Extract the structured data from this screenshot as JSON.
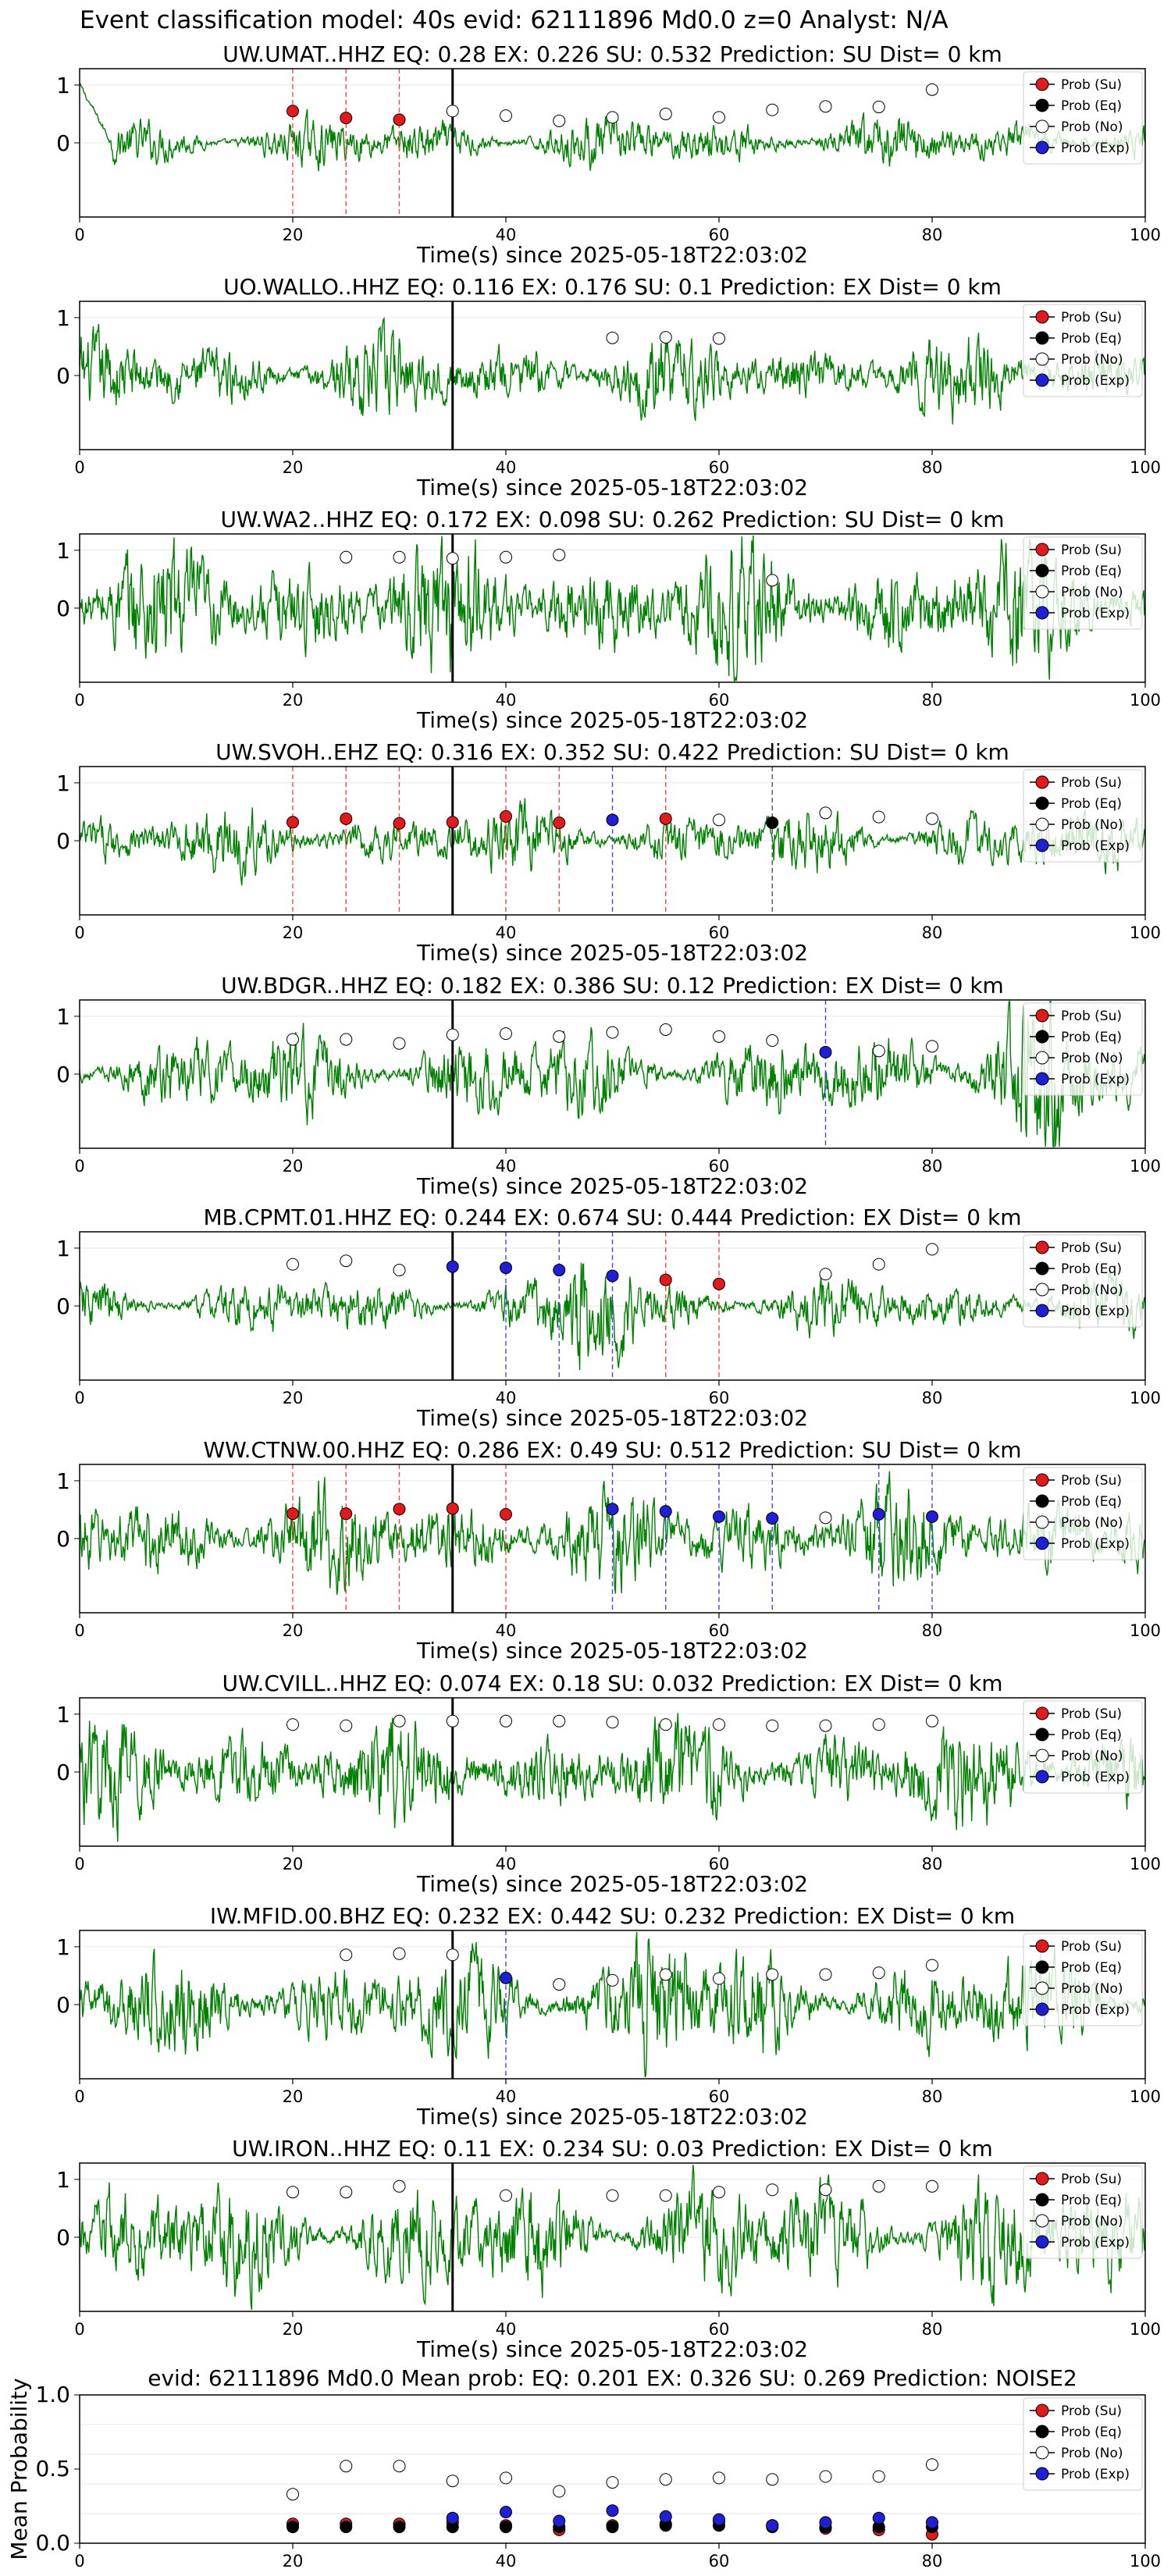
{
  "suptitle": "Event classification model: 40s evid: 62111896 Md0.0 z=0 Analyst: N/A",
  "colors": {
    "su": "#e31a1c",
    "eq": "#000000",
    "no": "#ffffff",
    "exp": "#1f1fd6",
    "trace": "#008000",
    "pick": "#000000"
  },
  "legend_labels": [
    "Prob (Su)",
    "Prob (Eq)",
    "Prob (No)",
    "Prob (Exp)"
  ],
  "chart_data": [
    {
      "type": "scatter",
      "title": "UW.UMAT..HHZ   EQ: 0.28  EX: 0.226  SU: 0.532   Prediction: SU    Dist= 0 km",
      "xlabel": "Time(s) since 2025-05-18T22:03:02",
      "xlim": [
        0,
        100
      ],
      "x_ticks": [
        0,
        20,
        40,
        60,
        80,
        100
      ],
      "y_ticks": [
        "1",
        "0"
      ],
      "grid": true,
      "legend": "top-right",
      "pick_time": 35,
      "waveform": "Seismogram trace (green), normalized amplitude",
      "series": [
        {
          "name": "Prob (Su)",
          "points": [
            [
              20,
              0.55
            ],
            [
              25,
              0.43
            ],
            [
              30,
              0.4
            ]
          ]
        },
        {
          "name": "Prob (No)",
          "points": [
            [
              35,
              0.55
            ],
            [
              40,
              0.47
            ],
            [
              45,
              0.38
            ],
            [
              50,
              0.44
            ],
            [
              55,
              0.5
            ],
            [
              60,
              0.44
            ],
            [
              65,
              0.57
            ],
            [
              70,
              0.63
            ],
            [
              75,
              0.62
            ],
            [
              80,
              0.92
            ]
          ]
        }
      ]
    },
    {
      "type": "scatter",
      "title": "UO.WALLO..HHZ   EQ: 0.116  EX: 0.176  SU: 0.1   Prediction: EX    Dist= 0 km",
      "xlabel": "Time(s) since 2025-05-18T22:03:02",
      "xlim": [
        0,
        100
      ],
      "x_ticks": [
        0,
        20,
        40,
        60,
        80,
        100
      ],
      "y_ticks": [
        "1",
        "0"
      ],
      "grid": true,
      "legend": "top-right",
      "pick_time": 35,
      "waveform": "Seismogram trace (green), normalized amplitude",
      "series": [
        {
          "name": "Prob (No)",
          "points": [
            [
              50,
              0.65
            ],
            [
              55,
              0.66
            ],
            [
              60,
              0.64
            ]
          ]
        }
      ]
    },
    {
      "type": "scatter",
      "title": "UW.WA2..HHZ   EQ: 0.172  EX: 0.098  SU: 0.262   Prediction: SU    Dist= 0 km",
      "xlabel": "Time(s) since 2025-05-18T22:03:02",
      "xlim": [
        0,
        100
      ],
      "x_ticks": [
        0,
        20,
        40,
        60,
        80,
        100
      ],
      "y_ticks": [
        "1",
        "0"
      ],
      "grid": true,
      "legend": "top-right",
      "pick_time": 35,
      "waveform": "Seismogram trace (green), normalized amplitude",
      "series": [
        {
          "name": "Prob (No)",
          "points": [
            [
              25,
              0.88
            ],
            [
              30,
              0.88
            ],
            [
              35,
              0.86
            ],
            [
              40,
              0.88
            ],
            [
              45,
              0.92
            ],
            [
              65,
              0.48
            ]
          ]
        }
      ]
    },
    {
      "type": "scatter",
      "title": "UW.SVOH..EHZ   EQ: 0.316  EX: 0.352  SU: 0.422    Prediction: SU    Dist= 0 km",
      "xlabel": "Time(s) since 2025-05-18T22:03:02",
      "xlim": [
        0,
        100
      ],
      "x_ticks": [
        0,
        20,
        40,
        60,
        80,
        100
      ],
      "y_ticks": [
        "1",
        "0"
      ],
      "grid": true,
      "legend": "top-right",
      "pick_time": 35,
      "waveform": "Seismogram trace (green), normalized amplitude",
      "series": [
        {
          "name": "Prob (Su)",
          "points": [
            [
              20,
              0.32
            ],
            [
              25,
              0.38
            ],
            [
              30,
              0.3
            ],
            [
              35,
              0.32
            ],
            [
              40,
              0.42
            ],
            [
              45,
              0.31
            ],
            [
              55,
              0.38
            ]
          ]
        },
        {
          "name": "Prob (Eq)",
          "points": [
            [
              65,
              0.31
            ]
          ]
        },
        {
          "name": "Prob (No)",
          "points": [
            [
              60,
              0.36
            ],
            [
              70,
              0.48
            ],
            [
              75,
              0.41
            ],
            [
              80,
              0.38
            ]
          ]
        },
        {
          "name": "Prob (Exp)",
          "points": [
            [
              50,
              0.36
            ]
          ]
        }
      ]
    },
    {
      "type": "scatter",
      "title": "UW.BDGR..HHZ   EQ: 0.182  EX: 0.386  SU: 0.12    Prediction: EX    Dist= 0 km",
      "xlabel": "Time(s) since 2025-05-18T22:03:02",
      "xlim": [
        0,
        100
      ],
      "x_ticks": [
        0,
        20,
        40,
        60,
        80,
        100
      ],
      "y_ticks": [
        "1",
        "0"
      ],
      "grid": true,
      "legend": "top-right",
      "pick_time": 35,
      "waveform": "Seismogram trace (green), normalized amplitude",
      "series": [
        {
          "name": "Prob (No)",
          "points": [
            [
              20,
              0.6
            ],
            [
              25,
              0.6
            ],
            [
              30,
              0.53
            ],
            [
              35,
              0.68
            ],
            [
              40,
              0.7
            ],
            [
              45,
              0.65
            ],
            [
              50,
              0.72
            ],
            [
              55,
              0.77
            ],
            [
              60,
              0.65
            ],
            [
              65,
              0.58
            ],
            [
              75,
              0.4
            ],
            [
              80,
              0.48
            ]
          ]
        },
        {
          "name": "Prob (Exp)",
          "points": [
            [
              70,
              0.38
            ]
          ]
        }
      ]
    },
    {
      "type": "scatter",
      "title": "MB.CPMT.01.HHZ   EQ: 0.244  EX: 0.674  SU: 0.444   Prediction: EX    Dist= 0 km",
      "xlabel": "Time(s) since 2025-05-18T22:03:02",
      "xlim": [
        0,
        100
      ],
      "x_ticks": [
        0,
        20,
        40,
        60,
        80,
        100
      ],
      "y_ticks": [
        "1",
        "0"
      ],
      "grid": true,
      "legend": "top-right",
      "pick_time": 35,
      "waveform": "Seismogram trace (green), normalized amplitude",
      "series": [
        {
          "name": "Prob (Su)",
          "points": [
            [
              55,
              0.45
            ],
            [
              60,
              0.38
            ]
          ]
        },
        {
          "name": "Prob (No)",
          "points": [
            [
              20,
              0.72
            ],
            [
              25,
              0.78
            ],
            [
              30,
              0.62
            ],
            [
              70,
              0.55
            ],
            [
              75,
              0.72
            ],
            [
              80,
              0.98
            ]
          ]
        },
        {
          "name": "Prob (Exp)",
          "points": [
            [
              35,
              0.68
            ],
            [
              40,
              0.66
            ],
            [
              45,
              0.62
            ],
            [
              50,
              0.52
            ]
          ]
        }
      ]
    },
    {
      "type": "scatter",
      "title": "WW.CTNW.00.HHZ   EQ: 0.286  EX: 0.49  SU: 0.512   Prediction: SU    Dist= 0 km",
      "xlabel": "Time(s) since 2025-05-18T22:03:02",
      "xlim": [
        0,
        100
      ],
      "x_ticks": [
        0,
        20,
        40,
        60,
        80,
        100
      ],
      "y_ticks": [
        "1",
        "0"
      ],
      "grid": true,
      "legend": "top-right",
      "pick_time": 35,
      "waveform": "Seismogram trace (green), normalized amplitude",
      "series": [
        {
          "name": "Prob (Su)",
          "points": [
            [
              20,
              0.43
            ],
            [
              25,
              0.43
            ],
            [
              30,
              0.51
            ],
            [
              35,
              0.52
            ],
            [
              40,
              0.42
            ]
          ]
        },
        {
          "name": "Prob (No)",
          "points": [
            [
              70,
              0.36
            ]
          ]
        },
        {
          "name": "Prob (Exp)",
          "points": [
            [
              50,
              0.51
            ],
            [
              55,
              0.47
            ],
            [
              60,
              0.38
            ],
            [
              65,
              0.35
            ],
            [
              75,
              0.42
            ],
            [
              80,
              0.38
            ]
          ]
        }
      ]
    },
    {
      "type": "scatter",
      "title": "UW.CVILL..HHZ   EQ: 0.074  EX: 0.18  SU: 0.032   Prediction: EX    Dist= 0 km",
      "xlabel": "Time(s) since 2025-05-18T22:03:02",
      "xlim": [
        0,
        100
      ],
      "x_ticks": [
        0,
        20,
        40,
        60,
        80,
        100
      ],
      "y_ticks": [
        "1",
        "0"
      ],
      "grid": true,
      "legend": "top-right",
      "pick_time": 35,
      "waveform": "Seismogram trace (green), normalized amplitude",
      "series": [
        {
          "name": "Prob (No)",
          "points": [
            [
              20,
              0.82
            ],
            [
              25,
              0.8
            ],
            [
              30,
              0.88
            ],
            [
              35,
              0.88
            ],
            [
              40,
              0.88
            ],
            [
              45,
              0.88
            ],
            [
              50,
              0.86
            ],
            [
              55,
              0.82
            ],
            [
              60,
              0.82
            ],
            [
              65,
              0.8
            ],
            [
              70,
              0.8
            ],
            [
              75,
              0.82
            ],
            [
              80,
              0.88
            ]
          ]
        }
      ]
    },
    {
      "type": "scatter",
      "title": "IW.MFID.00.BHZ   EQ: 0.232  EX: 0.442  SU: 0.232   Prediction: EX    Dist= 0 km",
      "xlabel": "Time(s) since 2025-05-18T22:03:02",
      "xlim": [
        0,
        100
      ],
      "x_ticks": [
        0,
        20,
        40,
        60,
        80,
        100
      ],
      "y_ticks": [
        "1",
        "0"
      ],
      "grid": true,
      "legend": "top-right",
      "pick_time": 35,
      "waveform": "Seismogram trace (green), normalized amplitude",
      "series": [
        {
          "name": "Prob (No)",
          "points": [
            [
              25,
              0.86
            ],
            [
              30,
              0.88
            ],
            [
              35,
              0.86
            ],
            [
              45,
              0.35
            ],
            [
              50,
              0.42
            ],
            [
              55,
              0.52
            ],
            [
              60,
              0.45
            ],
            [
              65,
              0.52
            ],
            [
              70,
              0.52
            ],
            [
              75,
              0.55
            ],
            [
              80,
              0.68
            ]
          ]
        },
        {
          "name": "Prob (Exp)",
          "points": [
            [
              40,
              0.46
            ]
          ]
        }
      ]
    },
    {
      "type": "scatter",
      "title": "UW.IRON..HHZ   EQ: 0.11  EX: 0.234  SU: 0.03   Prediction: EX    Dist= 0 km",
      "xlabel": "Time(s) since 2025-05-18T22:03:02",
      "xlim": [
        0,
        100
      ],
      "x_ticks": [
        0,
        20,
        40,
        60,
        80,
        100
      ],
      "y_ticks": [
        "1",
        "0"
      ],
      "grid": true,
      "legend": "top-right",
      "pick_time": 35,
      "waveform": "Seismogram trace (green), normalized amplitude",
      "series": [
        {
          "name": "Prob (No)",
          "points": [
            [
              20,
              0.78
            ],
            [
              25,
              0.78
            ],
            [
              30,
              0.88
            ],
            [
              40,
              0.72
            ],
            [
              50,
              0.72
            ],
            [
              55,
              0.72
            ],
            [
              60,
              0.78
            ],
            [
              65,
              0.82
            ],
            [
              70,
              0.82
            ],
            [
              75,
              0.88
            ],
            [
              80,
              0.88
            ]
          ]
        }
      ]
    },
    {
      "type": "scatter",
      "title": "evid: 62111896  Md0.0   Mean prob:   EQ: 0.201  EX: 0.326  SU: 0.269   Prediction: NOISE2",
      "ylabel": "Mean Probability",
      "xlim": [
        0,
        100
      ],
      "ylim": [
        0,
        1
      ],
      "x_ticks": [
        0,
        20,
        40,
        60,
        80,
        100
      ],
      "y_ticks": [
        "1.0",
        "0.5",
        "0.0"
      ],
      "grid": true,
      "legend": "top-right",
      "series": [
        {
          "name": "Prob (Su)",
          "points": [
            [
              20,
              0.13
            ],
            [
              25,
              0.13
            ],
            [
              30,
              0.13
            ],
            [
              35,
              0.14
            ],
            [
              40,
              0.12
            ],
            [
              45,
              0.09
            ],
            [
              50,
              0.12
            ],
            [
              55,
              0.13
            ],
            [
              60,
              0.15
            ],
            [
              65,
              0.12
            ],
            [
              70,
              0.1
            ],
            [
              75,
              0.09
            ],
            [
              80,
              0.06
            ]
          ]
        },
        {
          "name": "Prob (Eq)",
          "points": [
            [
              20,
              0.11
            ],
            [
              25,
              0.11
            ],
            [
              30,
              0.11
            ],
            [
              35,
              0.11
            ],
            [
              40,
              0.11
            ],
            [
              45,
              0.11
            ],
            [
              50,
              0.11
            ],
            [
              55,
              0.12
            ],
            [
              60,
              0.12
            ],
            [
              65,
              0.11
            ],
            [
              70,
              0.11
            ],
            [
              75,
              0.11
            ],
            [
              80,
              0.11
            ]
          ]
        },
        {
          "name": "Prob (No)",
          "points": [
            [
              20,
              0.33
            ],
            [
              25,
              0.52
            ],
            [
              30,
              0.52
            ],
            [
              35,
              0.42
            ],
            [
              40,
              0.44
            ],
            [
              45,
              0.35
            ],
            [
              50,
              0.41
            ],
            [
              55,
              0.43
            ],
            [
              60,
              0.44
            ],
            [
              65,
              0.43
            ],
            [
              70,
              0.45
            ],
            [
              75,
              0.45
            ],
            [
              80,
              0.53
            ]
          ]
        },
        {
          "name": "Prob (Exp)",
          "points": [
            [
              35,
              0.17
            ],
            [
              40,
              0.21
            ],
            [
              45,
              0.15
            ],
            [
              50,
              0.22
            ],
            [
              55,
              0.18
            ],
            [
              60,
              0.16
            ],
            [
              65,
              0.12
            ],
            [
              70,
              0.14
            ],
            [
              75,
              0.17
            ],
            [
              80,
              0.14
            ]
          ]
        }
      ]
    }
  ]
}
